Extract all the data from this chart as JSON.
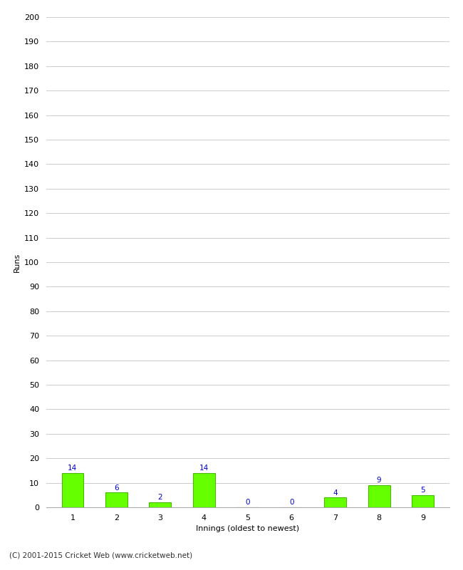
{
  "categories": [
    "1",
    "2",
    "3",
    "4",
    "5",
    "6",
    "7",
    "8",
    "9"
  ],
  "values": [
    14,
    6,
    2,
    14,
    0,
    0,
    4,
    9,
    5
  ],
  "bar_color": "#66ff00",
  "bar_edge_color": "#44bb00",
  "ylabel": "Runs",
  "xlabel": "Innings (oldest to newest)",
  "ylim": [
    0,
    200
  ],
  "yticks": [
    0,
    10,
    20,
    30,
    40,
    50,
    60,
    70,
    80,
    90,
    100,
    110,
    120,
    130,
    140,
    150,
    160,
    170,
    180,
    190,
    200
  ],
  "label_color": "#0000cc",
  "label_fontsize": 7.5,
  "footer": "(C) 2001-2015 Cricket Web (www.cricketweb.net)",
  "background_color": "#ffffff",
  "grid_color": "#cccccc",
  "axis_label_fontsize": 8,
  "tick_fontsize": 8,
  "bar_width": 0.5
}
